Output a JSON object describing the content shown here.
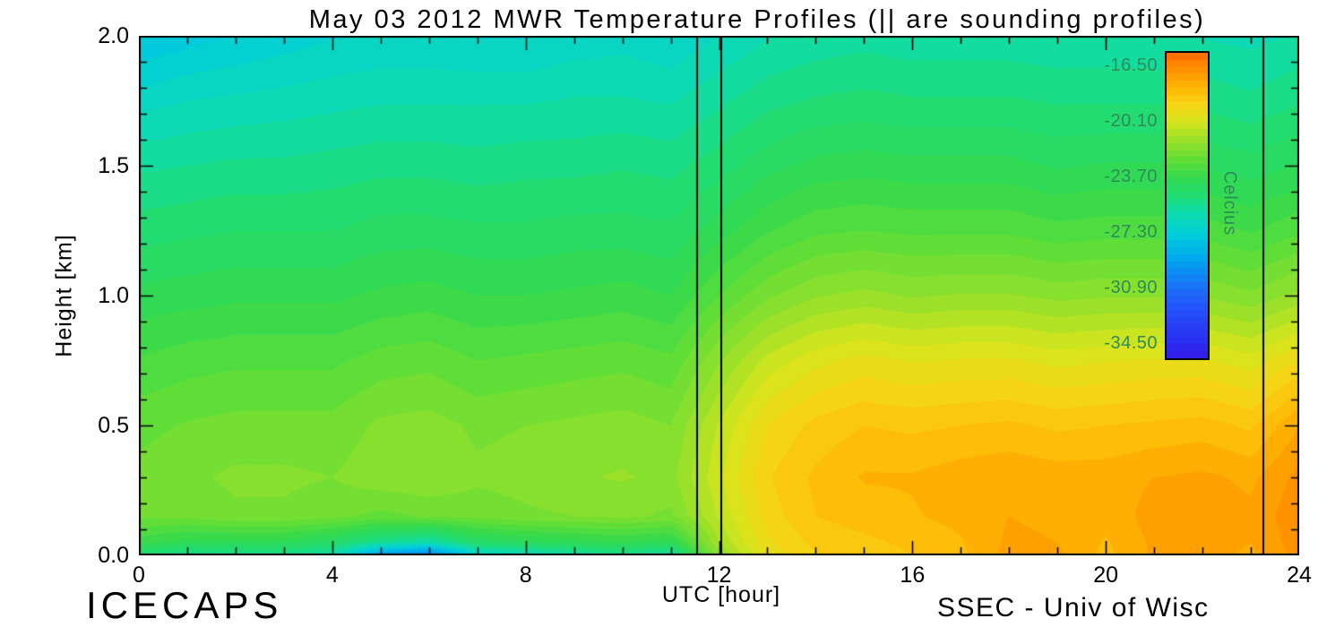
{
  "title": "May 03 2012 MWR Temperature Profiles (|| are sounding profiles)",
  "footer": {
    "left": "ICECAPS",
    "right": "SSEC - Univ of Wisc"
  },
  "x_axis": {
    "label": "UTC [hour]",
    "min": 0,
    "max": 24,
    "minor_tick_step": 1,
    "ticks": [
      {
        "label": "0",
        "value": 0
      },
      {
        "label": "4",
        "value": 4
      },
      {
        "label": "8",
        "value": 8
      },
      {
        "label": "12",
        "value": 12
      },
      {
        "label": "16",
        "value": 16
      },
      {
        "label": "20",
        "value": 20
      },
      {
        "label": "24",
        "value": 24
      }
    ]
  },
  "y_axis": {
    "label": "Height [km]",
    "min": 0,
    "max": 2,
    "minor_tick_step": 0.1,
    "ticks": [
      {
        "label": "0.0",
        "value": 0
      },
      {
        "label": "0.5",
        "value": 0.5
      },
      {
        "label": "1.0",
        "value": 1
      },
      {
        "label": "1.5",
        "value": 1.5
      },
      {
        "label": "2.0",
        "value": 2
      }
    ]
  },
  "colorbar": {
    "title": "Celcius",
    "label_color": "#2e8b57",
    "scale_min": -35.4,
    "scale_max": -15.6,
    "ticks": [
      {
        "label": "-16.50",
        "value": -16.5
      },
      {
        "label": "-20.10",
        "value": -20.1
      },
      {
        "label": "-23.70",
        "value": -23.7
      },
      {
        "label": "-27.30",
        "value": -27.3
      },
      {
        "label": "-30.90",
        "value": -30.9
      },
      {
        "label": "-34.50",
        "value": -34.5
      }
    ]
  },
  "chart_data": {
    "type": "heatmap",
    "xlabel": "UTC [hour]",
    "ylabel": "Height [km]",
    "x_range": [
      0,
      24
    ],
    "y_range": [
      0,
      2
    ],
    "units": "Celcius",
    "scale_min": -35.4,
    "scale_max": -15.6,
    "quantize_step": 0.45,
    "sounding_lines": [
      11.55,
      12.05,
      23.25
    ],
    "x": [
      0,
      1,
      2,
      3,
      4,
      5,
      6,
      7,
      8,
      9,
      10,
      11,
      12,
      13,
      14,
      15,
      16,
      17,
      18,
      19,
      20,
      21,
      22,
      23,
      24
    ],
    "y": [
      0,
      0.05,
      0.15,
      0.3,
      0.5,
      0.75,
      1.0,
      1.25,
      1.5,
      1.75,
      2.0
    ],
    "values": [
      [
        -25,
        -25.5,
        -25.5,
        -25.5,
        -26,
        -29.5,
        -30.5,
        -27,
        -26.5,
        -26,
        -25.5,
        -26,
        -21.5,
        -19.5,
        -18.8,
        -18.5,
        -18.3,
        -18,
        -17.2,
        -17.3,
        -18,
        -17.3,
        -17.2,
        -17.5,
        -16.8
      ],
      [
        -23.5,
        -24,
        -24,
        -24,
        -24.5,
        -25.5,
        -26,
        -24.5,
        -24.2,
        -24,
        -23.8,
        -24,
        -21,
        -19.3,
        -18.6,
        -18.4,
        -18.2,
        -17.9,
        -17.3,
        -17.4,
        -17.9,
        -17.3,
        -17.2,
        -17.4,
        -16.7
      ],
      [
        -22.3,
        -22.2,
        -22,
        -22,
        -22.2,
        -22.5,
        -22.3,
        -22.2,
        -22,
        -21.9,
        -21.8,
        -22,
        -20.5,
        -19,
        -18.3,
        -18.1,
        -17.9,
        -17.7,
        -17.4,
        -17.5,
        -17.7,
        -17.2,
        -17.1,
        -17.3,
        -16.6
      ],
      [
        -22.2,
        -22,
        -21.8,
        -21.8,
        -21.9,
        -21.6,
        -21.5,
        -21.8,
        -21.7,
        -21.5,
        -21.4,
        -21.6,
        -20.2,
        -18.8,
        -18.2,
        -17.8,
        -17.8,
        -17.6,
        -17.5,
        -17.6,
        -17.6,
        -17.4,
        -17.3,
        -17.5,
        -16.8
      ],
      [
        -22.5,
        -22.3,
        -22.2,
        -22.2,
        -22.2,
        -21.8,
        -21.7,
        -22,
        -21.9,
        -21.8,
        -21.7,
        -21.9,
        -20.5,
        -19.2,
        -18.6,
        -18.3,
        -18.4,
        -18.3,
        -18.2,
        -18.4,
        -18.3,
        -18.2,
        -18.1,
        -18.4,
        -17.4
      ],
      [
        -23.2,
        -23,
        -22.9,
        -22.9,
        -22.9,
        -22.6,
        -22.5,
        -22.8,
        -22.7,
        -22.6,
        -22.5,
        -22.7,
        -21.5,
        -20.4,
        -19.8,
        -19.5,
        -19.7,
        -19.6,
        -19.6,
        -19.8,
        -19.7,
        -19.6,
        -19.6,
        -19.9,
        -19.2
      ],
      [
        -24,
        -23.9,
        -23.8,
        -23.8,
        -23.8,
        -23.6,
        -23.5,
        -23.7,
        -23.7,
        -23.6,
        -23.5,
        -23.7,
        -22.8,
        -22,
        -21.5,
        -21.3,
        -21.5,
        -21.4,
        -21.4,
        -21.6,
        -21.5,
        -21.5,
        -21.5,
        -21.8,
        -21.3
      ],
      [
        -24.8,
        -24.7,
        -24.6,
        -24.6,
        -24.6,
        -24.4,
        -24.4,
        -24.5,
        -24.5,
        -24.4,
        -24.4,
        -24.5,
        -23.9,
        -23.3,
        -22.9,
        -22.8,
        -22.9,
        -22.9,
        -22.9,
        -23.1,
        -23,
        -23,
        -23,
        -23.3,
        -22.9
      ],
      [
        -25.6,
        -25.5,
        -25.4,
        -25.4,
        -25.3,
        -25.2,
        -25.2,
        -25.3,
        -25.2,
        -25.2,
        -25.1,
        -25.2,
        -24.8,
        -24.3,
        -24,
        -23.9,
        -24,
        -24,
        -24,
        -24.2,
        -24.1,
        -24.1,
        -24.2,
        -24.4,
        -24.1
      ],
      [
        -26.6,
        -26.4,
        -26.3,
        -26.2,
        -26.1,
        -26,
        -26,
        -26,
        -26,
        -25.9,
        -25.9,
        -26,
        -25.6,
        -25.2,
        -25,
        -24.9,
        -25,
        -25,
        -25,
        -25.1,
        -25.1,
        -25.1,
        -25.2,
        -25.4,
        -25.1
      ],
      [
        -27.8,
        -27.5,
        -27.3,
        -27.1,
        -26.9,
        -26.8,
        -26.8,
        -26.9,
        -26.9,
        -26.7,
        -26.6,
        -26.8,
        -26.4,
        -26,
        -25.8,
        -25.7,
        -25.8,
        -25.8,
        -25.8,
        -25.9,
        -25.9,
        -25.9,
        -26,
        -26.1,
        -25.9
      ]
    ],
    "colormap": [
      [
        -36.3,
        "#3a0bd8"
      ],
      [
        -34.5,
        "#2b2bf0"
      ],
      [
        -32.0,
        "#2356fa"
      ],
      [
        -30.9,
        "#1e6ef8"
      ],
      [
        -29.0,
        "#00a6f0"
      ],
      [
        -27.3,
        "#00cfd8"
      ],
      [
        -26.0,
        "#0fdcae"
      ],
      [
        -25.0,
        "#1fdc78"
      ],
      [
        -23.7,
        "#33d94e"
      ],
      [
        -22.5,
        "#63de36"
      ],
      [
        -21.3,
        "#98e02a"
      ],
      [
        -20.1,
        "#d6e51e"
      ],
      [
        -19.0,
        "#f5d513"
      ],
      [
        -18.0,
        "#ffbb06"
      ],
      [
        -17.0,
        "#ff9a00"
      ],
      [
        -16.5,
        "#ff8c00"
      ],
      [
        -15.5,
        "#fb6400"
      ],
      [
        -14.7,
        "#f04000"
      ]
    ]
  }
}
